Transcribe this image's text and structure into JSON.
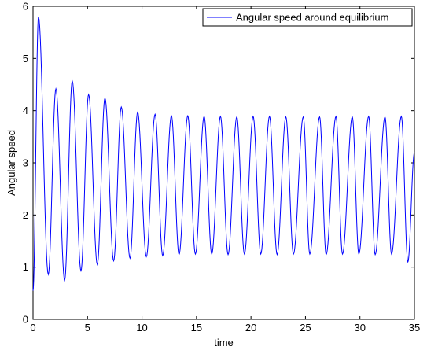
{
  "chart_data": {
    "type": "line",
    "title": "",
    "xlabel": "time",
    "ylabel": "Angular speed",
    "xlim": [
      0,
      35
    ],
    "ylim": [
      0,
      6
    ],
    "grid": false,
    "legend": {
      "position": "top-right",
      "entries": [
        "Angular speed around equilibrium"
      ]
    },
    "x_ticks": [
      "0",
      "5",
      "10",
      "15",
      "20",
      "25",
      "30",
      "35"
    ],
    "y_ticks": [
      "0",
      "1",
      "2",
      "3",
      "4",
      "5",
      "6"
    ],
    "series": [
      {
        "name": "Angular speed around equilibrium",
        "color": "#0000ff",
        "peaks": [
          [
            0.5,
            5.8
          ],
          [
            2.1,
            4.42
          ],
          [
            3.6,
            4.57
          ],
          [
            5.1,
            4.31
          ],
          [
            6.6,
            4.24
          ],
          [
            8.1,
            4.07
          ],
          [
            9.6,
            3.97
          ],
          [
            11.2,
            3.93
          ],
          [
            12.7,
            3.9
          ],
          [
            14.2,
            3.9
          ],
          [
            15.7,
            3.89
          ],
          [
            17.2,
            3.89
          ],
          [
            18.7,
            3.88
          ],
          [
            20.2,
            3.89
          ],
          [
            21.7,
            3.89
          ],
          [
            23.2,
            3.88
          ],
          [
            24.8,
            3.88
          ],
          [
            26.3,
            3.88
          ],
          [
            27.8,
            3.89
          ],
          [
            29.3,
            3.88
          ],
          [
            30.8,
            3.89
          ],
          [
            32.3,
            3.88
          ],
          [
            33.8,
            3.89
          ]
        ],
        "troughs": [
          [
            1.4,
            0.86
          ],
          [
            2.9,
            0.75
          ],
          [
            4.4,
            0.93
          ],
          [
            5.9,
            1.05
          ],
          [
            7.4,
            1.12
          ],
          [
            8.9,
            1.17
          ],
          [
            10.4,
            1.2
          ],
          [
            11.9,
            1.22
          ],
          [
            13.4,
            1.24
          ],
          [
            14.9,
            1.25
          ],
          [
            16.4,
            1.25
          ],
          [
            17.9,
            1.24
          ],
          [
            19.4,
            1.25
          ],
          [
            20.9,
            1.25
          ],
          [
            22.4,
            1.24
          ],
          [
            23.9,
            1.25
          ],
          [
            25.4,
            1.25
          ],
          [
            26.9,
            1.24
          ],
          [
            28.4,
            1.25
          ],
          [
            29.9,
            1.25
          ],
          [
            31.4,
            1.24
          ],
          [
            32.9,
            1.25
          ],
          [
            34.4,
            1.1
          ]
        ],
        "start": [
          0,
          0.55
        ],
        "end": [
          35,
          3.2
        ]
      }
    ]
  }
}
